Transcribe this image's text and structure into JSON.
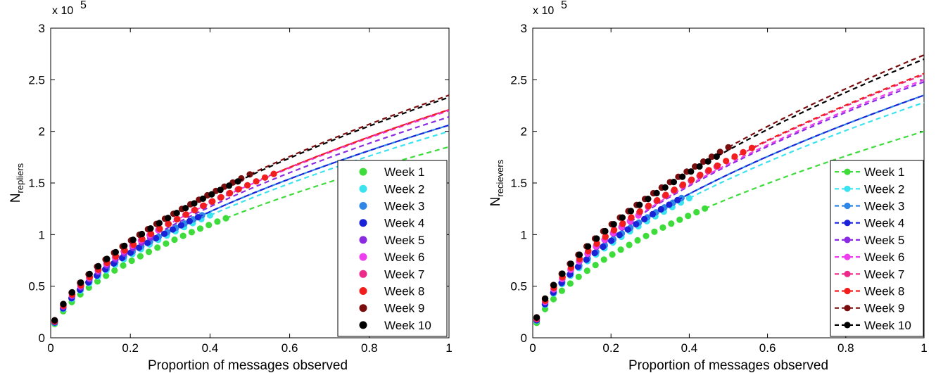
{
  "chart_data": [
    {
      "type": "scatter",
      "xlabel": "Proportion of messages observed",
      "ylabel_main": "N",
      "ylabel_sub": "repliers",
      "scale_label": "x 10",
      "scale_exp": "5",
      "xlim": [
        0,
        1
      ],
      "ylim": [
        0,
        300000
      ],
      "xticks": [
        "0",
        "0.2",
        "0.4",
        "0.6",
        "0.8",
        "1"
      ],
      "yticks": [
        "0",
        "0.5",
        "1",
        "1.5",
        "2",
        "2.5",
        "3"
      ],
      "grid": false,
      "legend_position": "bottom-right",
      "legend_style": "markers",
      "series": [
        {
          "name": "Week 1",
          "color": "#3ddc3a",
          "x_max": 0.44,
          "y_at_1": 185000
        },
        {
          "name": "Week 2",
          "color": "#3be3f0",
          "x_max": 0.4,
          "y_at_1": 200000
        },
        {
          "name": "Week 3",
          "color": "#2e86e6",
          "x_max": 0.38,
          "y_at_1": 206000
        },
        {
          "name": "Week 4",
          "color": "#1a22d8",
          "x_max": 0.37,
          "y_at_1": 206000
        },
        {
          "name": "Week 5",
          "color": "#8a2be2",
          "x_max": 0.25,
          "y_at_1": 214000
        },
        {
          "name": "Week 6",
          "color": "#ee3fee",
          "x_max": 0.27,
          "y_at_1": 220000
        },
        {
          "name": "Week 7",
          "color": "#ec2a8a",
          "x_max": 0.47,
          "y_at_1": 221000
        },
        {
          "name": "Week 8",
          "color": "#f21d1d",
          "x_max": 0.56,
          "y_at_1": 221000
        },
        {
          "name": "Week 9",
          "color": "#7a0d0d",
          "x_max": 0.5,
          "y_at_1": 235000
        },
        {
          "name": "Week 10",
          "color": "#000000",
          "x_max": 0.47,
          "y_at_1": 233000
        }
      ]
    },
    {
      "type": "scatter",
      "xlabel": "Proportion of messages observed",
      "ylabel_main": "N",
      "ylabel_sub": "recievers",
      "scale_label": "x 10",
      "scale_exp": "5",
      "xlim": [
        0,
        1
      ],
      "ylim": [
        0,
        300000
      ],
      "xticks": [
        "0",
        "0.2",
        "0.4",
        "0.6",
        "0.8",
        "1"
      ],
      "yticks": [
        "0",
        "0.5",
        "1",
        "1.5",
        "2",
        "2.5",
        "3"
      ],
      "grid": false,
      "legend_position": "bottom-right",
      "legend_style": "dashed-line-with-marker",
      "series": [
        {
          "name": "Week 1",
          "color": "#3ddc3a",
          "x_max": 0.44,
          "y_at_1": 200000
        },
        {
          "name": "Week 2",
          "color": "#3be3f0",
          "x_max": 0.4,
          "y_at_1": 228000
        },
        {
          "name": "Week 3",
          "color": "#2e86e6",
          "x_max": 0.38,
          "y_at_1": 235000
        },
        {
          "name": "Week 4",
          "color": "#1a22d8",
          "x_max": 0.37,
          "y_at_1": 235000
        },
        {
          "name": "Week 5",
          "color": "#8a2be2",
          "x_max": 0.25,
          "y_at_1": 248000
        },
        {
          "name": "Week 6",
          "color": "#ee3fee",
          "x_max": 0.27,
          "y_at_1": 250000
        },
        {
          "name": "Week 7",
          "color": "#ec2a8a",
          "x_max": 0.47,
          "y_at_1": 255000
        },
        {
          "name": "Week 8",
          "color": "#f21d1d",
          "x_max": 0.56,
          "y_at_1": 256000
        },
        {
          "name": "Week 9",
          "color": "#7a0d0d",
          "x_max": 0.5,
          "y_at_1": 274000
        },
        {
          "name": "Week 10",
          "color": "#000000",
          "x_max": 0.47,
          "y_at_1": 270000
        }
      ]
    }
  ]
}
